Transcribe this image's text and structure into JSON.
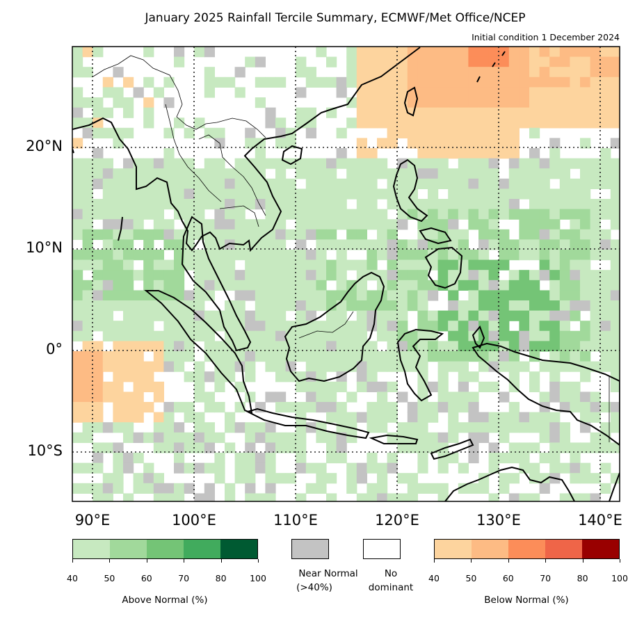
{
  "title": "January 2025 Rainfall Tercile Summary, ECMWF/Met Office/NCEP",
  "subtitle": "Initial condition 1 December 2024",
  "lat_labels": [
    "20°N",
    "10°N",
    "0°",
    "10°S"
  ],
  "lon_labels": [
    "90°E",
    "100°E",
    "110°E",
    "120°E",
    "130°E",
    "140°E"
  ],
  "legend": {
    "above": {
      "ticks": [
        "40",
        "50",
        "60",
        "70",
        "80",
        "100"
      ],
      "caption": "Above Normal (%)",
      "colors": [
        "#c7e9c0",
        "#a1d99b",
        "#74c476",
        "#41ab5d",
        "#005a32"
      ]
    },
    "near_normal": {
      "caption_line1": "Near Normal",
      "caption_line2": "(>40%)",
      "color": "#c3c3c3"
    },
    "no_dominant": {
      "caption_line1": "No",
      "caption_line2": "dominant",
      "color": "#ffffff"
    },
    "below": {
      "ticks": [
        "40",
        "50",
        "60",
        "70",
        "80",
        "100"
      ],
      "caption": "Below Normal (%)",
      "colors": [
        "#fdd49e",
        "#fdbb84",
        "#fc8d59",
        "#ef6548",
        "#990000"
      ]
    }
  }
}
